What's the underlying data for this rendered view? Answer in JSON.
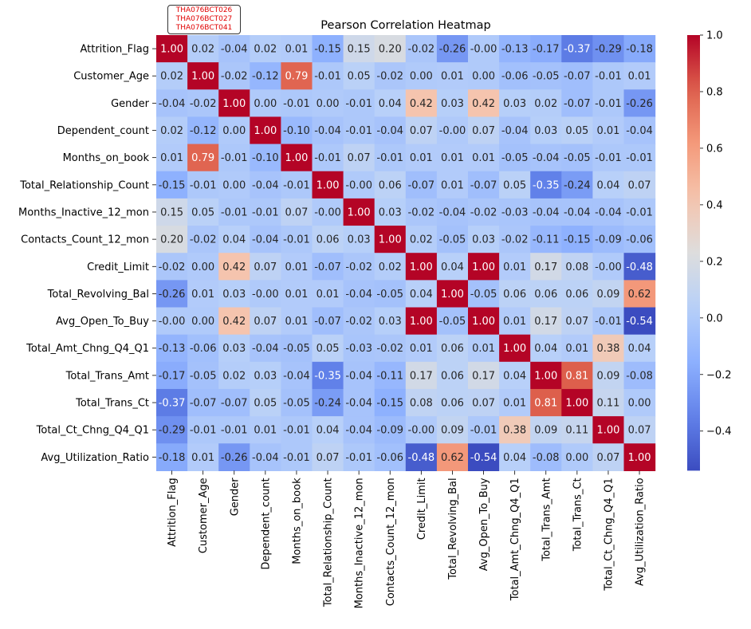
{
  "stamp_lines": [
    "THA076BCT026",
    "THA076BCT027",
    "THA076BCT041"
  ],
  "chart_data": {
    "type": "heatmap",
    "title": "Pearson Correlation Heatmap",
    "xlabel": "",
    "ylabel": "",
    "colormap": "coolwarm",
    "color_range": [
      -0.54,
      1.0
    ],
    "colorbar_ticks": [
      "1.0",
      "0.8",
      "0.6",
      "0.4",
      "0.2",
      "0.0",
      "−0.2",
      "−0.4"
    ],
    "colorbar_tick_values": [
      1.0,
      0.8,
      0.6,
      0.4,
      0.2,
      0.0,
      -0.2,
      -0.4
    ],
    "labels": [
      "Attrition_Flag",
      "Customer_Age",
      "Gender",
      "Dependent_count",
      "Months_on_book",
      "Total_Relationship_Count",
      "Months_Inactive_12_mon",
      "Contacts_Count_12_mon",
      "Credit_Limit",
      "Total_Revolving_Bal",
      "Avg_Open_To_Buy",
      "Total_Amt_Chng_Q4_Q1",
      "Total_Trans_Amt",
      "Total_Trans_Ct",
      "Total_Ct_Chng_Q4_Q1",
      "Avg_Utilization_Ratio"
    ],
    "values": [
      [
        1.0,
        0.02,
        -0.04,
        0.02,
        0.01,
        -0.15,
        0.15,
        0.2,
        -0.02,
        -0.26,
        -0.0,
        -0.13,
        -0.17,
        -0.37,
        -0.29,
        -0.18
      ],
      [
        0.02,
        1.0,
        -0.02,
        -0.12,
        0.79,
        -0.01,
        0.05,
        -0.02,
        0.0,
        0.01,
        0.0,
        -0.06,
        -0.05,
        -0.07,
        -0.01,
        0.01
      ],
      [
        -0.04,
        -0.02,
        1.0,
        0.0,
        -0.01,
        0.0,
        -0.01,
        0.04,
        0.42,
        0.03,
        0.42,
        0.03,
        0.02,
        -0.07,
        -0.01,
        -0.26
      ],
      [
        0.02,
        -0.12,
        0.0,
        1.0,
        -0.1,
        -0.04,
        -0.01,
        -0.04,
        0.07,
        -0.0,
        0.07,
        -0.04,
        0.03,
        0.05,
        0.01,
        -0.04
      ],
      [
        0.01,
        0.79,
        -0.01,
        -0.1,
        1.0,
        -0.01,
        0.07,
        -0.01,
        0.01,
        0.01,
        0.01,
        -0.05,
        -0.04,
        -0.05,
        -0.01,
        -0.01
      ],
      [
        -0.15,
        -0.01,
        0.0,
        -0.04,
        -0.01,
        1.0,
        -0.0,
        0.06,
        -0.07,
        0.01,
        -0.07,
        0.05,
        -0.35,
        -0.24,
        0.04,
        0.07
      ],
      [
        0.15,
        0.05,
        -0.01,
        -0.01,
        0.07,
        -0.0,
        1.0,
        0.03,
        -0.02,
        -0.04,
        -0.02,
        -0.03,
        -0.04,
        -0.04,
        -0.04,
        -0.01
      ],
      [
        0.2,
        -0.02,
        0.04,
        -0.04,
        -0.01,
        0.06,
        0.03,
        1.0,
        0.02,
        -0.05,
        0.03,
        -0.02,
        -0.11,
        -0.15,
        -0.09,
        -0.06
      ],
      [
        -0.02,
        0.0,
        0.42,
        0.07,
        0.01,
        -0.07,
        -0.02,
        0.02,
        1.0,
        0.04,
        1.0,
        0.01,
        0.17,
        0.08,
        -0.0,
        -0.48
      ],
      [
        -0.26,
        0.01,
        0.03,
        -0.0,
        0.01,
        0.01,
        -0.04,
        -0.05,
        0.04,
        1.0,
        -0.05,
        0.06,
        0.06,
        0.06,
        0.09,
        0.62
      ],
      [
        -0.0,
        0.0,
        0.42,
        0.07,
        0.01,
        -0.07,
        -0.02,
        0.03,
        1.0,
        -0.05,
        1.0,
        0.01,
        0.17,
        0.07,
        -0.01,
        -0.54
      ],
      [
        -0.13,
        -0.06,
        0.03,
        -0.04,
        -0.05,
        0.05,
        -0.03,
        -0.02,
        0.01,
        0.06,
        0.01,
        1.0,
        0.04,
        0.01,
        0.38,
        0.04
      ],
      [
        -0.17,
        -0.05,
        0.02,
        0.03,
        -0.04,
        -0.35,
        -0.04,
        -0.11,
        0.17,
        0.06,
        0.17,
        0.04,
        1.0,
        0.81,
        0.09,
        -0.08
      ],
      [
        -0.37,
        -0.07,
        -0.07,
        0.05,
        -0.05,
        -0.24,
        -0.04,
        -0.15,
        0.08,
        0.06,
        0.07,
        0.01,
        0.81,
        1.0,
        0.11,
        0.0
      ],
      [
        -0.29,
        -0.01,
        -0.01,
        0.01,
        -0.01,
        0.04,
        -0.04,
        -0.09,
        -0.0,
        0.09,
        -0.01,
        0.38,
        0.09,
        0.11,
        1.0,
        0.07
      ],
      [
        -0.18,
        0.01,
        -0.26,
        -0.04,
        -0.01,
        0.07,
        -0.01,
        -0.06,
        -0.48,
        0.62,
        -0.54,
        0.04,
        -0.08,
        0.0,
        0.07,
        1.0
      ]
    ],
    "annotation_format": "2 decimals"
  }
}
